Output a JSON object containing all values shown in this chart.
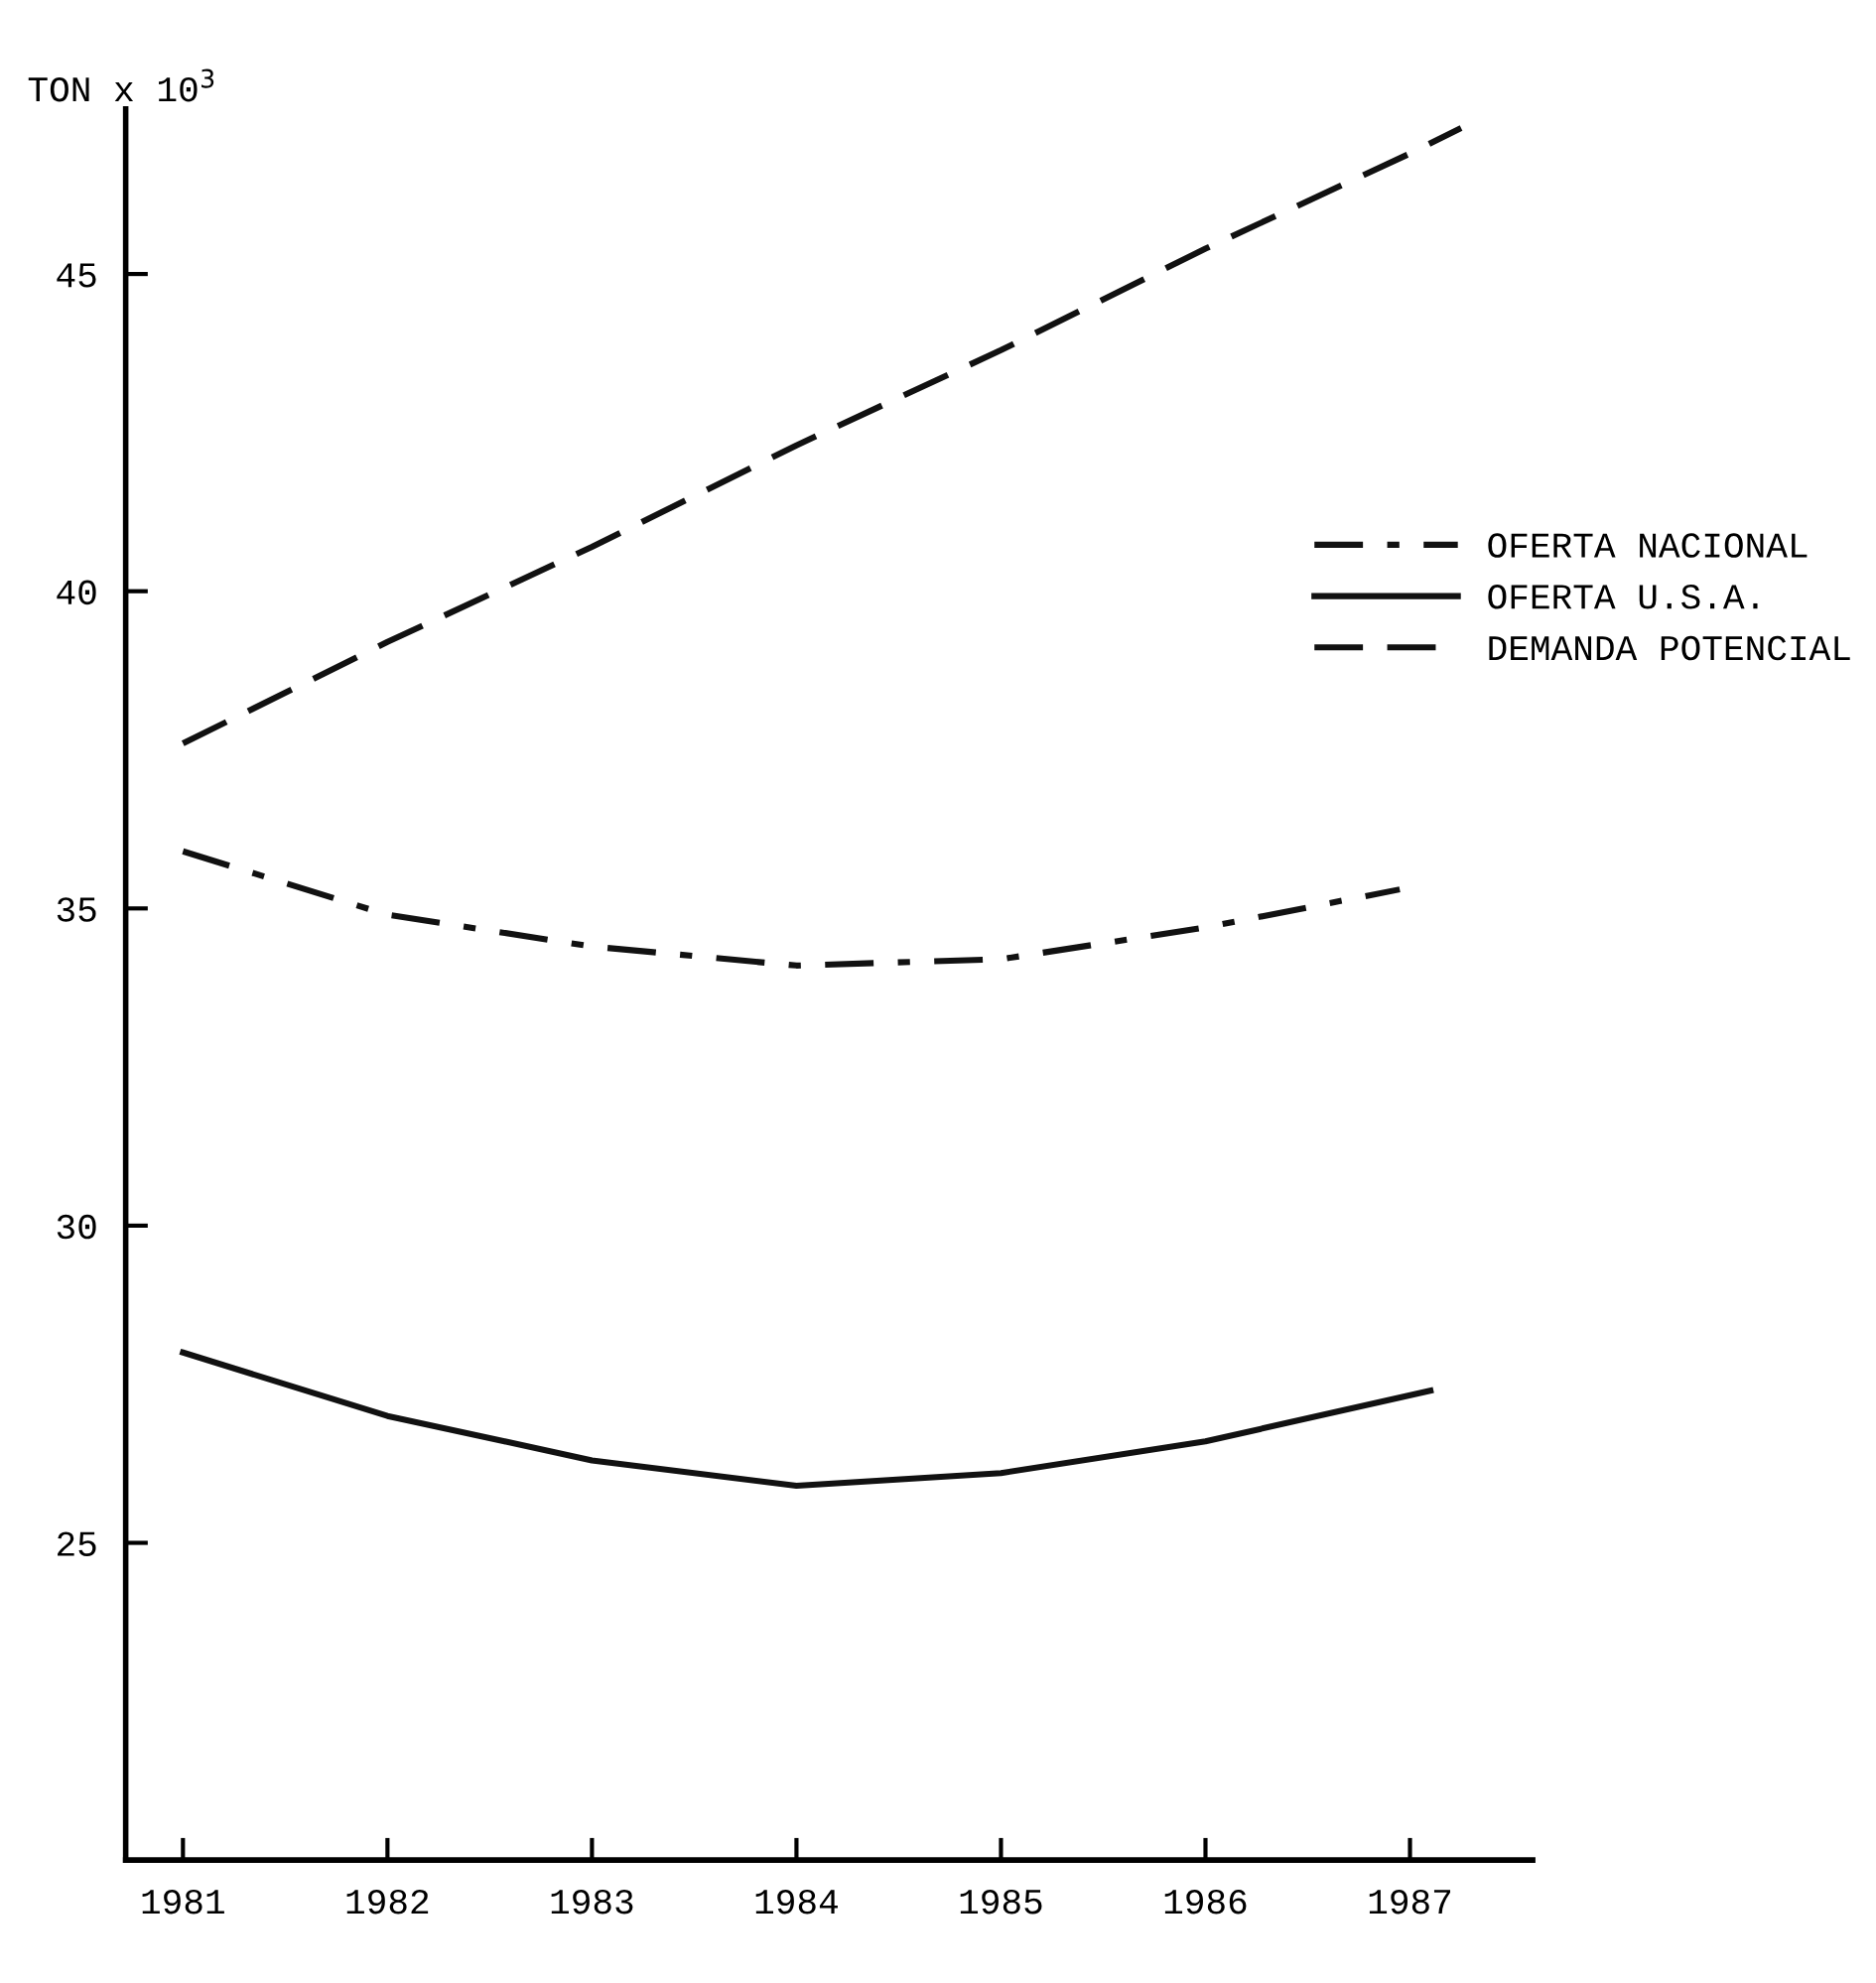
{
  "chart_data": {
    "type": "line",
    "ylabel": "TON x 10$^{3}$",
    "xlim": [
      1980.72,
      1987.6
    ],
    "xticks": [
      1981,
      1982,
      1983,
      1984,
      1985,
      1986,
      1987
    ],
    "ylim": [
      20,
      47.6
    ],
    "yticks": [
      25,
      30,
      35,
      40,
      45
    ],
    "grid": false,
    "legend": "right",
    "marker": "none",
    "series": [
      {
        "name": "OFERTA NACIONAL",
        "color": "#111111",
        "line_style": "dashdot",
        "x": [
          1981,
          1982,
          1983,
          1984,
          1985,
          1986,
          1986.95
        ],
        "values": [
          35.9,
          34.9,
          34.4,
          34.1,
          34.2,
          34.7,
          35.3
        ]
      },
      {
        "name": "OFERTA U.S.A.",
        "color": "#111111",
        "line_style": "solid",
        "x": [
          1981,
          1982,
          1983,
          1984,
          1985,
          1986,
          1987.1
        ],
        "values": [
          28.0,
          27.0,
          26.3,
          25.9,
          26.1,
          26.6,
          27.4
        ]
      },
      {
        "name": "DEMANDA POTENCIAL",
        "color": "#111111",
        "line_style": "dashed",
        "x": [
          1981,
          1982,
          1983,
          1984,
          1985,
          1986,
          1987,
          1987.25
        ],
        "values": [
          37.6,
          39.2,
          40.7,
          42.3,
          43.8,
          45.4,
          46.9,
          47.3
        ]
      }
    ]
  }
}
